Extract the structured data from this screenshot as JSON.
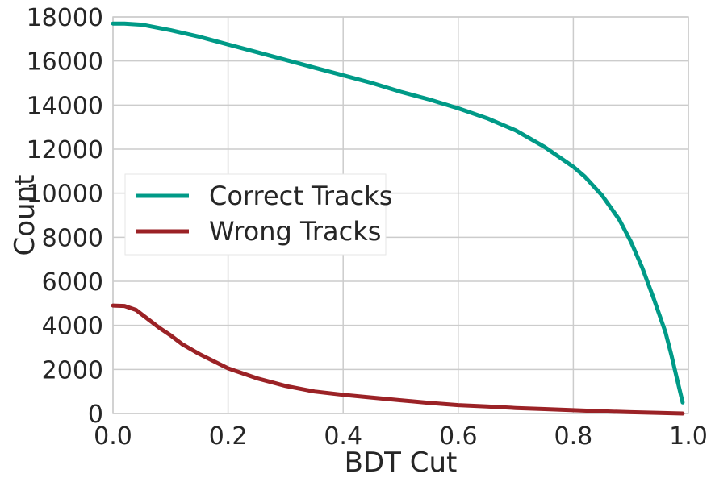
{
  "chart_data": {
    "type": "line",
    "title": "",
    "xlabel": "BDT Cut",
    "ylabel": "Count",
    "xlim": [
      0.0,
      1.0
    ],
    "ylim": [
      0,
      18000
    ],
    "xticks": [
      "0.0",
      "0.2",
      "0.4",
      "0.6",
      "0.8",
      "1.0"
    ],
    "yticks": [
      "0",
      "2000",
      "4000",
      "6000",
      "8000",
      "10000",
      "12000",
      "14000",
      "16000",
      "18000"
    ],
    "grid": true,
    "legend_position": "center-left",
    "series": [
      {
        "name": "Correct Tracks",
        "color": "#009a87",
        "x": [
          0.0,
          0.02,
          0.05,
          0.08,
          0.1,
          0.15,
          0.2,
          0.25,
          0.3,
          0.35,
          0.4,
          0.45,
          0.5,
          0.55,
          0.6,
          0.65,
          0.7,
          0.75,
          0.8,
          0.82,
          0.85,
          0.88,
          0.9,
          0.92,
          0.94,
          0.96,
          0.97,
          0.98,
          0.99
        ],
        "y": [
          17700,
          17700,
          17650,
          17500,
          17400,
          17100,
          16750,
          16400,
          16050,
          15700,
          15350,
          15000,
          14600,
          14250,
          13850,
          13400,
          12850,
          12100,
          11200,
          10750,
          9900,
          8800,
          7800,
          6600,
          5200,
          3700,
          2700,
          1600,
          500
        ]
      },
      {
        "name": "Wrong Tracks",
        "color": "#9b2226",
        "x": [
          0.0,
          0.02,
          0.04,
          0.06,
          0.08,
          0.1,
          0.12,
          0.15,
          0.2,
          0.25,
          0.3,
          0.35,
          0.4,
          0.45,
          0.5,
          0.55,
          0.6,
          0.65,
          0.7,
          0.75,
          0.8,
          0.85,
          0.9,
          0.95,
          0.99
        ],
        "y": [
          4900,
          4880,
          4700,
          4300,
          3900,
          3550,
          3150,
          2700,
          2050,
          1600,
          1250,
          1000,
          850,
          720,
          600,
          480,
          380,
          320,
          250,
          200,
          150,
          100,
          60,
          30,
          0
        ]
      }
    ]
  }
}
